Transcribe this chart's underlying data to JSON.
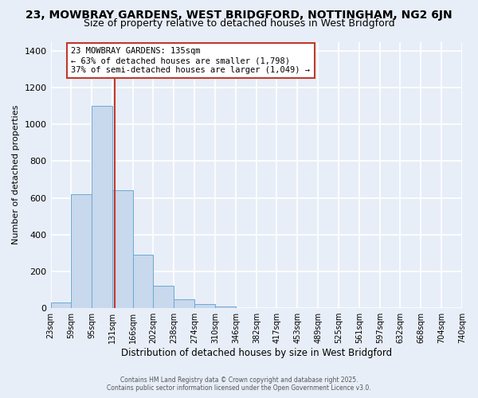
{
  "title1": "23, MOWBRAY GARDENS, WEST BRIDGFORD, NOTTINGHAM, NG2 6JN",
  "title2": "Size of property relative to detached houses in West Bridgford",
  "xlabel": "Distribution of detached houses by size in West Bridgford",
  "ylabel": "Number of detached properties",
  "bin_edges": [
    23,
    59,
    95,
    131,
    166,
    202,
    238,
    274,
    310,
    346,
    382,
    417,
    453,
    489,
    525,
    561,
    597,
    632,
    668,
    704,
    740
  ],
  "bar_heights": [
    30,
    620,
    1100,
    640,
    290,
    120,
    50,
    20,
    10,
    0,
    0,
    0,
    0,
    0,
    0,
    0,
    0,
    0,
    0,
    0
  ],
  "bar_color": "#c8d8ed",
  "bar_edge_color": "#6aaad4",
  "property_size": 135,
  "property_line_color": "#c0392b",
  "annotation_text_line1": "23 MOWBRAY GARDENS: 135sqm",
  "annotation_text_line2": "← 63% of detached houses are smaller (1,798)",
  "annotation_text_line3": "37% of semi-detached houses are larger (1,049) →",
  "annotation_box_color": "#c0392b",
  "ylim": [
    0,
    1450
  ],
  "background_color": "#e8eef8",
  "plot_bg_color": "#e8eef8",
  "grid_color": "#ffffff",
  "footer_line1": "Contains HM Land Registry data © Crown copyright and database right 2025.",
  "footer_line2": "Contains public sector information licensed under the Open Government Licence v3.0.",
  "title1_fontsize": 10,
  "title2_fontsize": 9,
  "tick_label_fontsize": 7,
  "ylabel_fontsize": 8,
  "xlabel_fontsize": 8.5,
  "footer_fontsize": 5.5
}
